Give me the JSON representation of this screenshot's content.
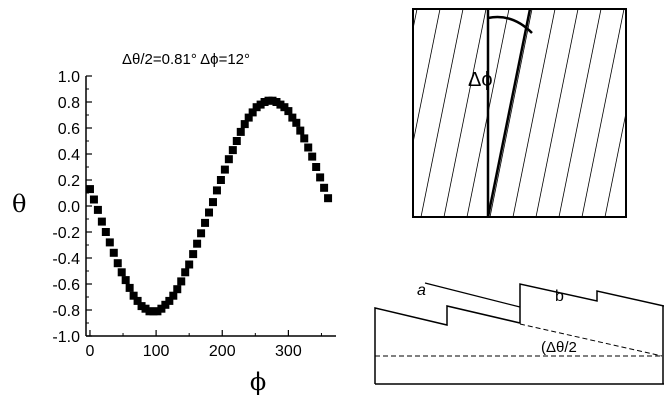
{
  "chart_data": {
    "type": "scatter",
    "title": "Δθ/2=0.81° Δϕ=12°",
    "xlabel": "ϕ",
    "ylabel": "θ",
    "xlim": [
      -6,
      372
    ],
    "ylim": [
      -1.0,
      1.0
    ],
    "xticks": [
      0,
      100,
      200,
      300
    ],
    "yticks": [
      -1.0,
      -0.8,
      -0.6,
      -0.4,
      -0.2,
      0.0,
      0.2,
      0.4,
      0.6,
      0.8,
      1.0
    ],
    "ytick_labels": [
      "-1.0",
      "-0.8",
      "-0.6",
      "-0.4",
      "-0.2",
      "0.0",
      "0.2",
      "0.4",
      "0.6",
      "0.8",
      "1.0"
    ],
    "grid": false,
    "marker": "square",
    "marker_color": "#000000",
    "x": [
      0,
      6,
      12,
      18,
      24,
      30,
      36,
      42,
      48,
      54,
      60,
      66,
      72,
      78,
      84,
      90,
      96,
      102,
      108,
      114,
      120,
      126,
      132,
      138,
      144,
      150,
      156,
      162,
      168,
      174,
      180,
      186,
      192,
      198,
      204,
      210,
      216,
      222,
      228,
      234,
      240,
      246,
      252,
      258,
      264,
      270,
      276,
      282,
      288,
      294,
      300,
      306,
      312,
      318,
      324,
      330,
      336,
      342,
      348,
      354,
      360
    ],
    "y": [
      0.13,
      0.05,
      -0.03,
      -0.12,
      -0.2,
      -0.28,
      -0.36,
      -0.44,
      -0.51,
      -0.57,
      -0.63,
      -0.69,
      -0.73,
      -0.77,
      -0.79,
      -0.81,
      -0.81,
      -0.81,
      -0.79,
      -0.76,
      -0.73,
      -0.69,
      -0.64,
      -0.58,
      -0.51,
      -0.45,
      -0.37,
      -0.29,
      -0.21,
      -0.13,
      -0.05,
      0.03,
      0.12,
      0.2,
      0.28,
      0.36,
      0.43,
      0.5,
      0.57,
      0.63,
      0.68,
      0.72,
      0.76,
      0.78,
      0.8,
      0.81,
      0.81,
      0.8,
      0.78,
      0.76,
      0.73,
      0.68,
      0.64,
      0.58,
      0.52,
      0.45,
      0.38,
      0.3,
      0.22,
      0.14,
      0.06
    ]
  },
  "inset_top": {
    "label": "Δϕ"
  },
  "inset_bottom": {
    "label_a": "a",
    "label_b": "b",
    "angle_label": "(Δθ/2"
  }
}
